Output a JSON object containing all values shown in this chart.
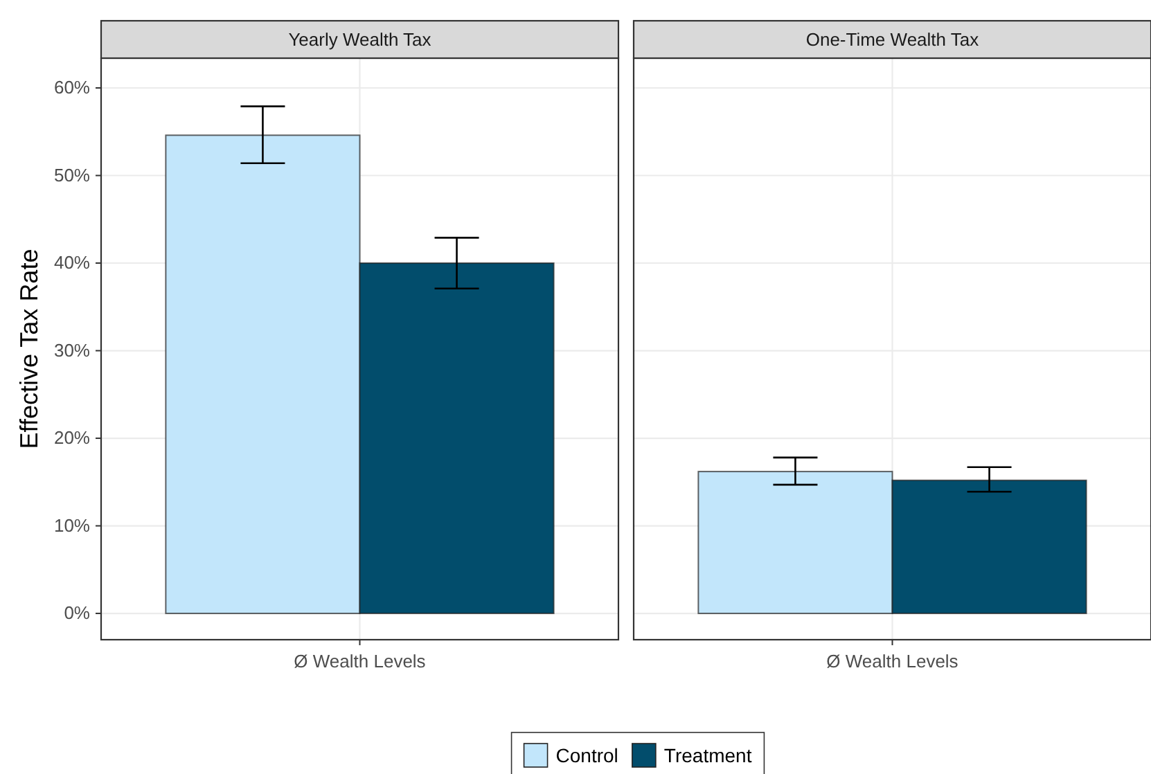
{
  "chart_data": {
    "type": "bar",
    "ylabel": "Effective Tax Rate",
    "annotations": [
      "Yearly Wealth Tax",
      "One-Time Wealth Tax"
    ],
    "categories": [
      "Ø Wealth Levels",
      "Ø Wealth Levels"
    ],
    "series": [
      {
        "name": "Control",
        "color": "#c2e6fb",
        "values": [
          54.6,
          16.2
        ],
        "errors": [
          [
            51.4,
            57.9
          ],
          [
            14.7,
            17.8
          ]
        ]
      },
      {
        "name": "Treatment",
        "color": "#024d6c",
        "values": [
          40.0,
          15.2
        ],
        "errors": [
          [
            37.1,
            42.9
          ],
          [
            13.9,
            16.7
          ]
        ]
      }
    ],
    "ylim": [
      -3,
      63.4
    ],
    "yticks": [
      {
        "value": 0,
        "label": "0%"
      },
      {
        "value": 10,
        "label": "10%"
      },
      {
        "value": 20,
        "label": "20%"
      },
      {
        "value": 30,
        "label": "30%"
      },
      {
        "value": 40,
        "label": "40%"
      },
      {
        "value": 50,
        "label": "50%"
      },
      {
        "value": 60,
        "label": "60%"
      }
    ],
    "grid": true,
    "legend": "bottom"
  }
}
